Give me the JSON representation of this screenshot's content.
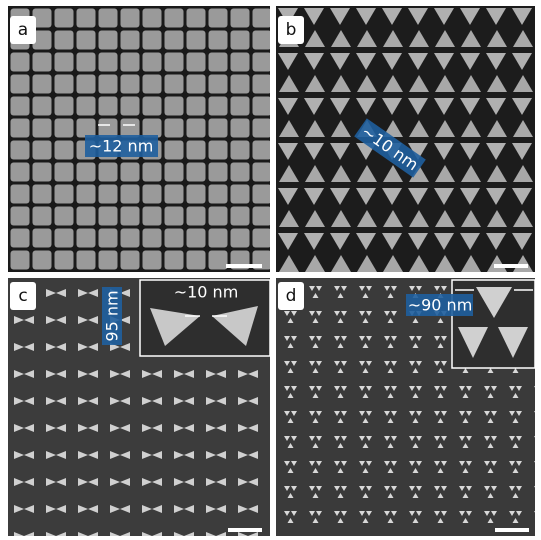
{
  "panels": [
    {
      "label": "a",
      "annotations": [
        "~12 nm"
      ]
    },
    {
      "label": "b",
      "annotations": [
        "~10 nm"
      ]
    },
    {
      "label": "c",
      "annotations": [
        "95 nm",
        "~10 nm"
      ]
    },
    {
      "label": "d",
      "annotations": [
        "~90 nm"
      ]
    }
  ]
}
